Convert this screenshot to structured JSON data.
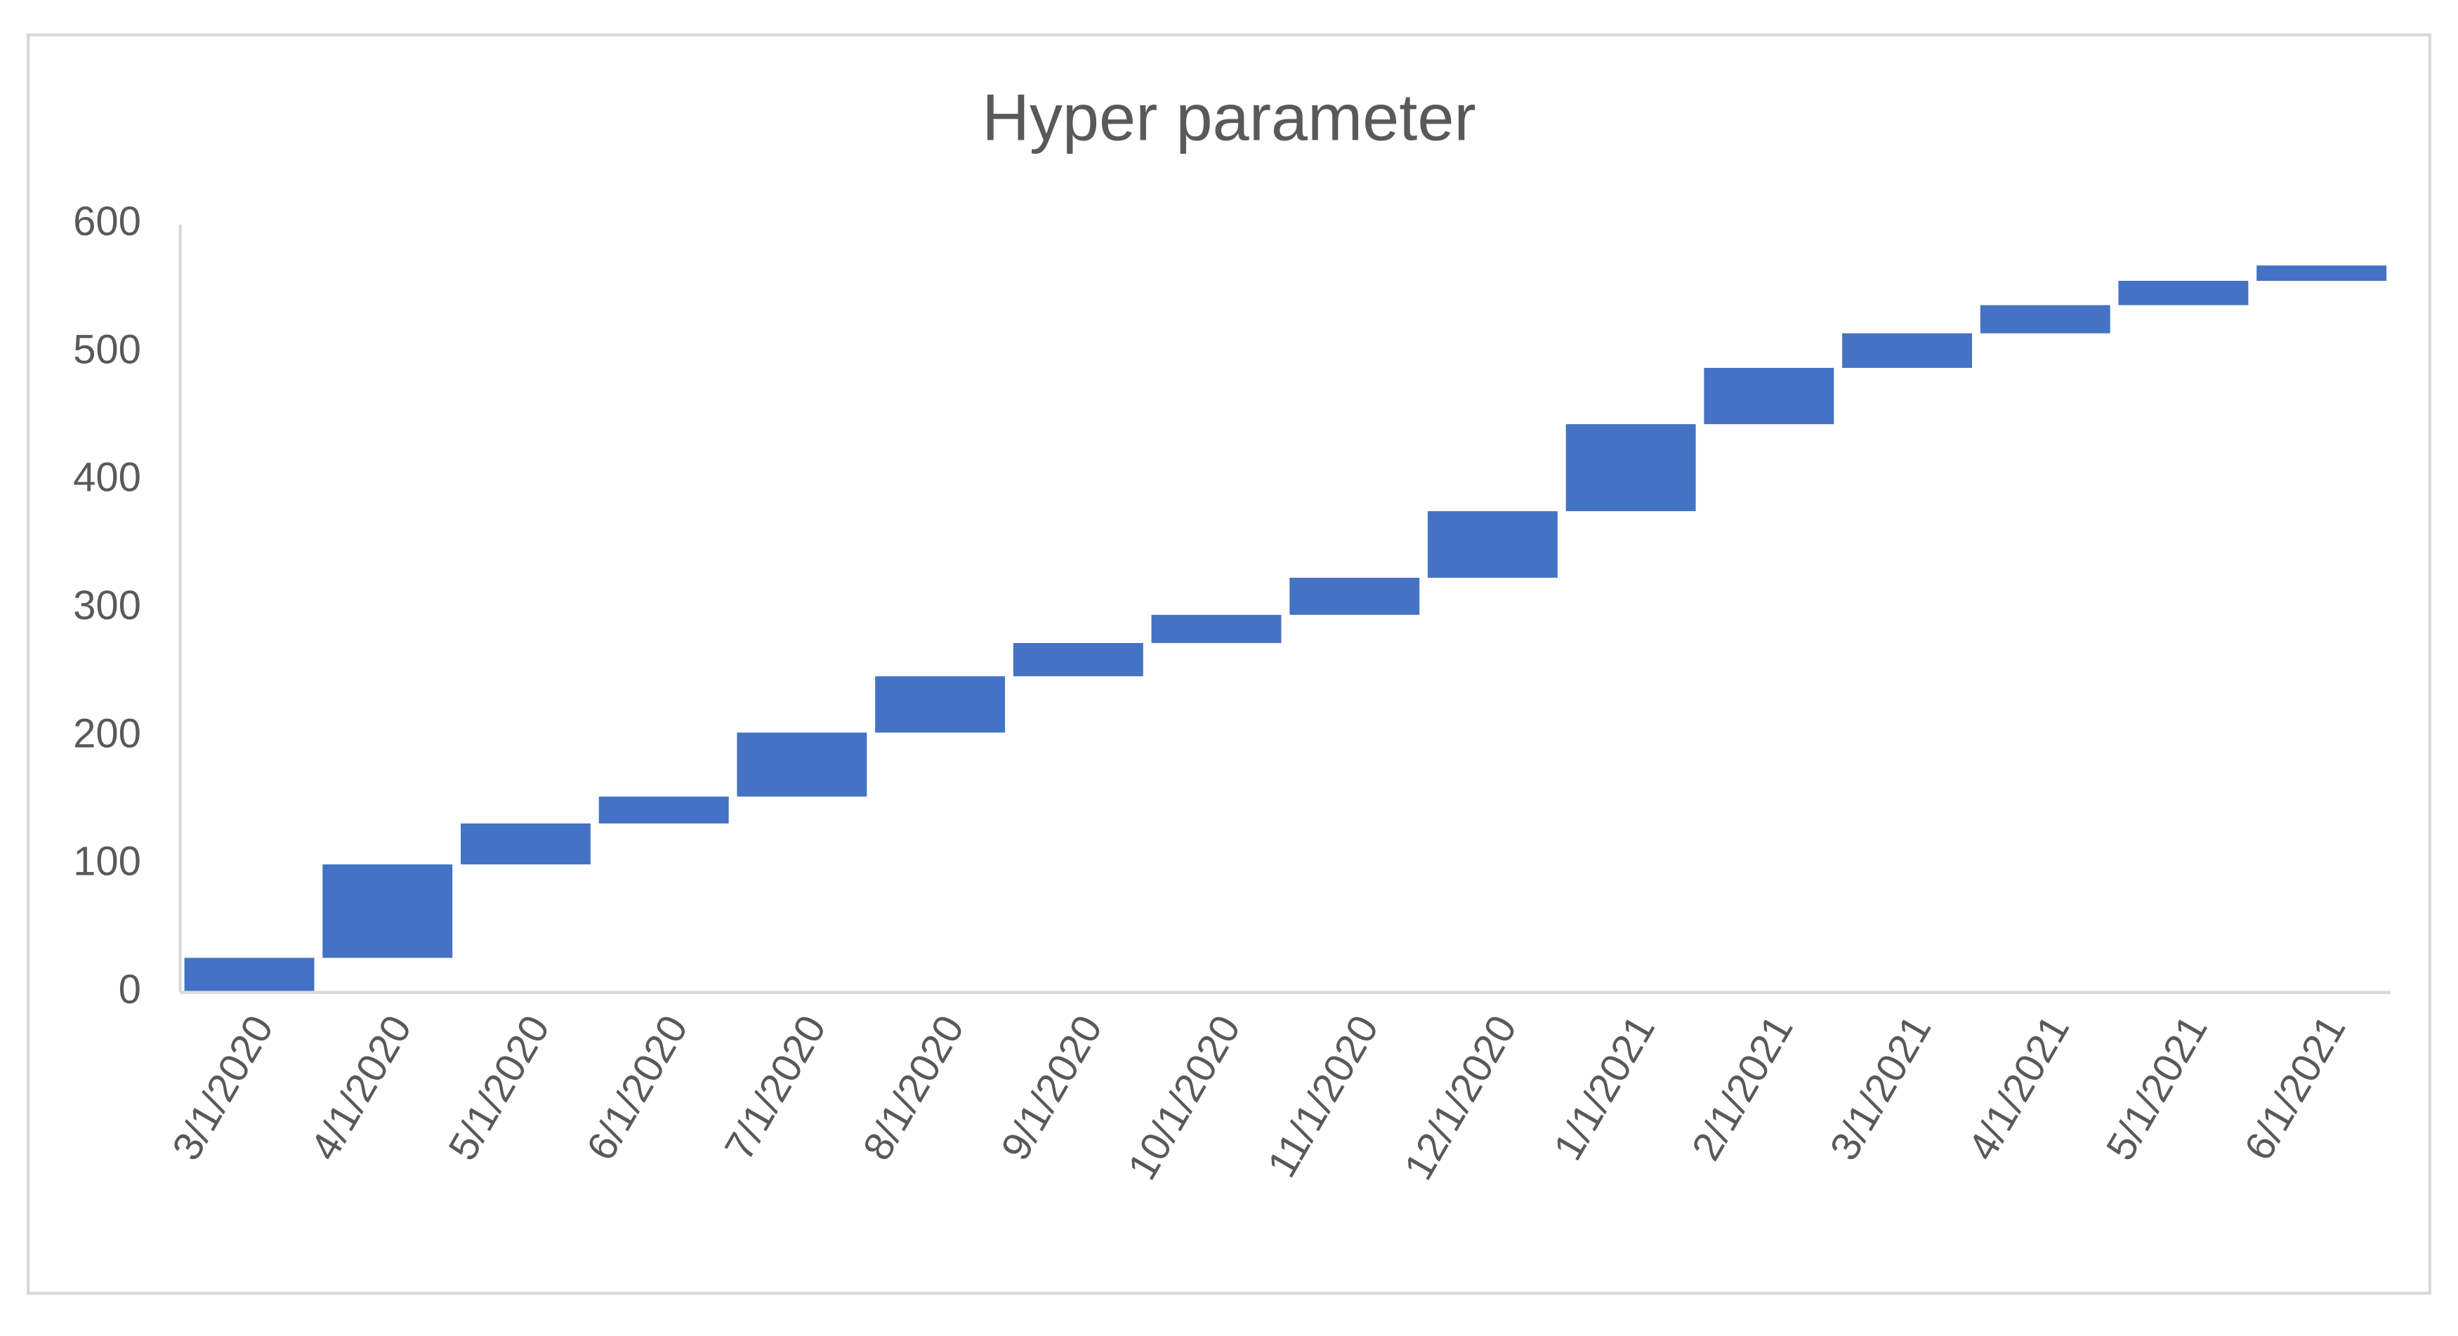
{
  "chart_data": {
    "type": "waterfall",
    "title": "Hyper parameter",
    "categories": [
      "3/1/2020",
      "4/1/2020",
      "5/1/2020",
      "6/1/2020",
      "7/1/2020",
      "8/1/2020",
      "9/1/2020",
      "10/1/2020",
      "11/1/2020",
      "12/1/2020",
      "1/1/2021",
      "2/1/2021",
      "3/1/2021",
      "4/1/2021",
      "5/1/2021",
      "6/1/2021"
    ],
    "values": [
      27,
      73,
      32,
      21,
      50,
      44,
      26,
      22,
      29,
      52,
      68,
      44,
      27,
      22,
      19,
      12
    ],
    "color": "#4472c4",
    "ylim": [
      0,
      600
    ],
    "yticks": [
      0,
      100,
      200,
      300,
      400,
      500,
      600
    ],
    "grid": false
  }
}
